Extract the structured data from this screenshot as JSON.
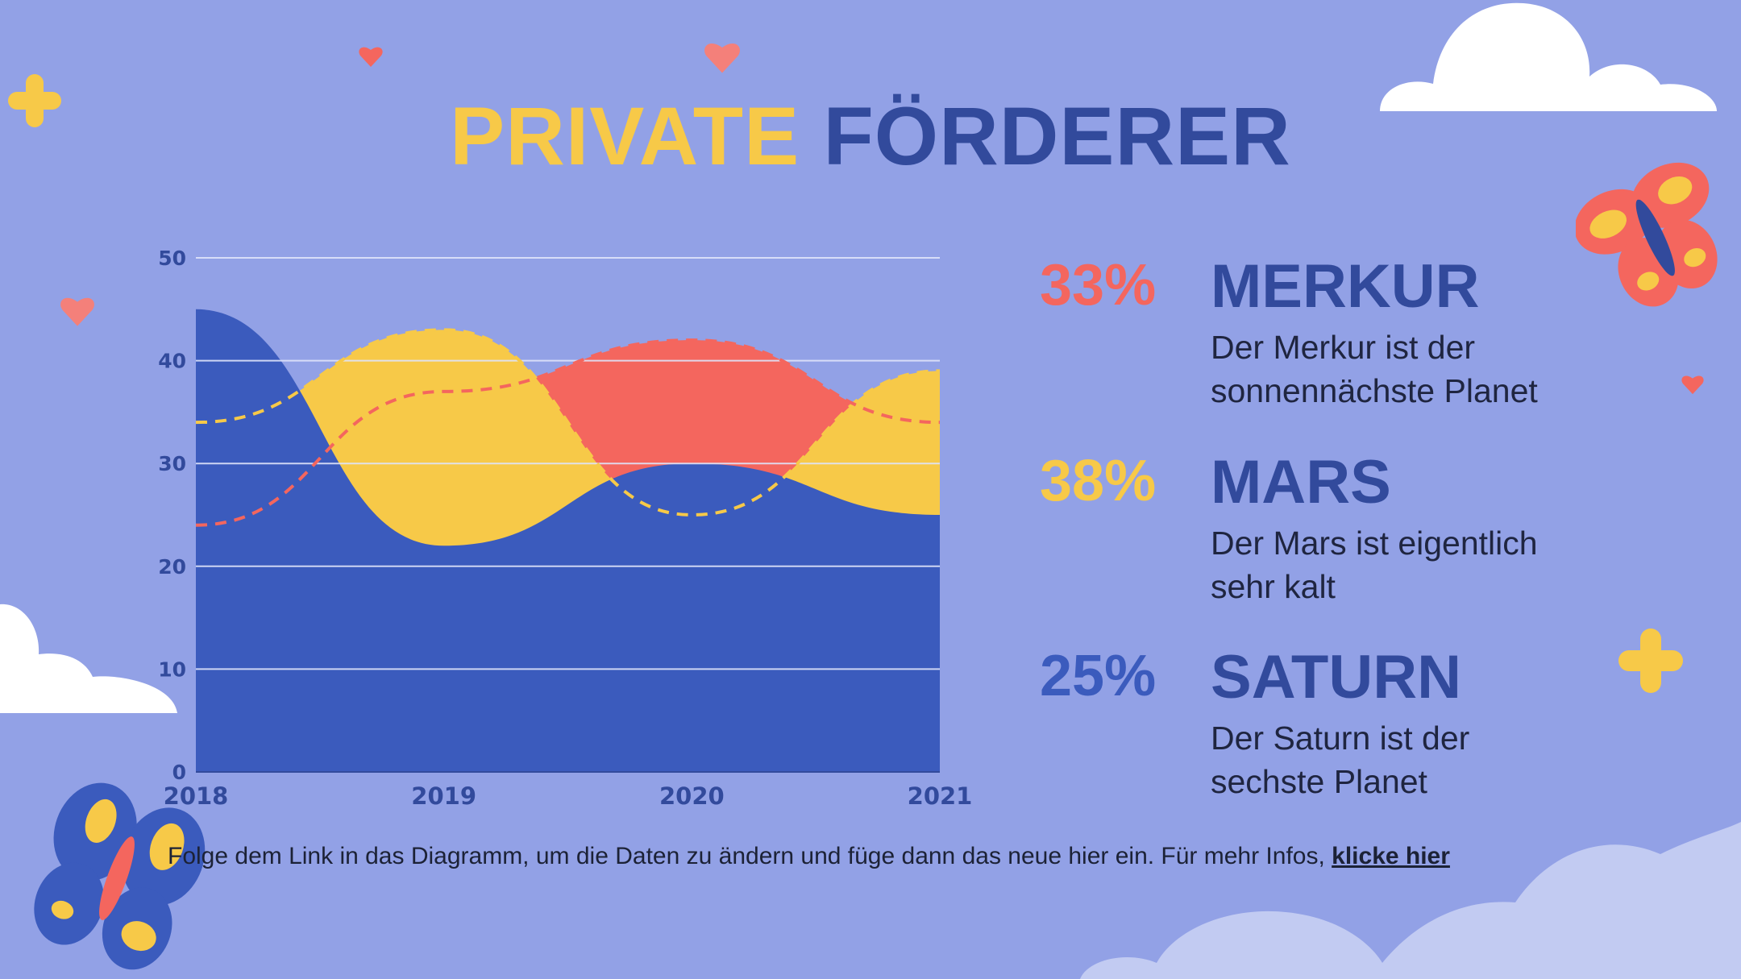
{
  "title": {
    "part1": "PRIVATE",
    "part2": "FÖRDERER"
  },
  "colors": {
    "background": "#92a1e6",
    "merkur": "#f4665e",
    "mars": "#f7c948",
    "saturn": "#3b5bbd",
    "title_dark": "#324a9c"
  },
  "stats": [
    {
      "percent": "33%",
      "name": "MERKUR",
      "line1": "Der Merkur ist der",
      "line2": "sonnennächste Planet"
    },
    {
      "percent": "38%",
      "name": "MARS",
      "line1": "Der Mars ist eigentlich",
      "line2": "sehr kalt"
    },
    {
      "percent": "25%",
      "name": "SATURN",
      "line1": "Der Saturn ist der",
      "line2": "sechste Planet"
    }
  ],
  "footnote": {
    "text": "Folge dem Link in das Diagramm, um die Daten zu ändern und füge dann das neue hier ein. Für mehr Infos, ",
    "link": "klicke hier"
  },
  "chart_data": {
    "type": "area",
    "x": [
      2018,
      2019,
      2020,
      2021
    ],
    "x_ticks": [
      "2018",
      "2019",
      "2020",
      "2021"
    ],
    "y_ticks": [
      "0",
      "10",
      "20",
      "30",
      "40",
      "50"
    ],
    "ylim": [
      0,
      50
    ],
    "grid": true,
    "legend": "none",
    "series": [
      {
        "color": "#3b5bbd",
        "style": "area",
        "values": [
          45,
          22,
          30,
          25
        ]
      },
      {
        "color": "#f7c948",
        "style": "area",
        "values": [
          34,
          43,
          25,
          39
        ]
      },
      {
        "color": "#f4665e",
        "style": "area",
        "values": [
          24,
          37,
          42,
          34
        ]
      },
      {
        "color": "#f7c948",
        "style": "dashed",
        "values": [
          34,
          43,
          25,
          39
        ]
      },
      {
        "color": "#f4665e",
        "style": "dashed",
        "values": [
          24,
          37,
          42,
          34
        ]
      }
    ]
  }
}
